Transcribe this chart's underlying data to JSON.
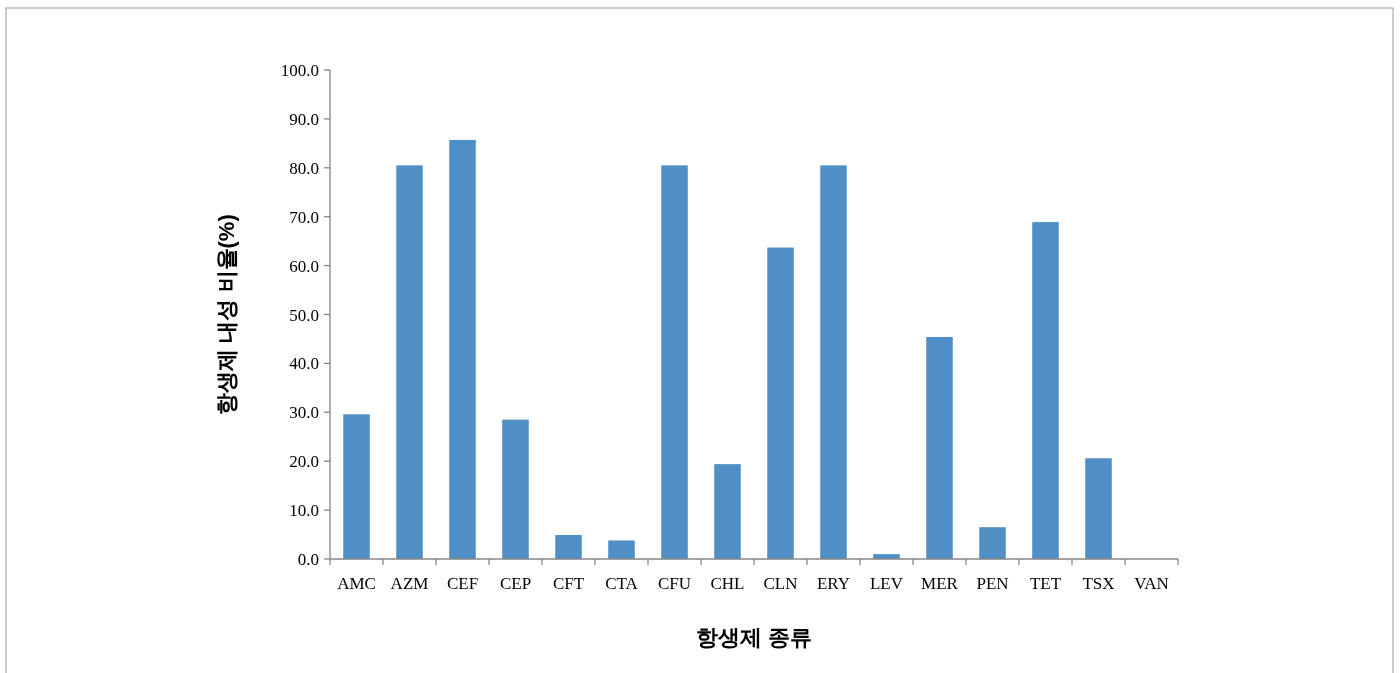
{
  "chart_data": {
    "type": "bar",
    "xlabel": "항생제 종류",
    "ylabel": "항생제 내성 비율(%)",
    "categories": [
      "AMC",
      "AZM",
      "CEF",
      "CEP",
      "CFT",
      "CTA",
      "CFU",
      "CHL",
      "CLN",
      "ERY",
      "LEV",
      "MER",
      "PEN",
      "TET",
      "TSX",
      "VAN"
    ],
    "values": [
      29.6,
      80.5,
      85.7,
      28.5,
      4.9,
      3.8,
      80.5,
      19.4,
      63.7,
      80.5,
      1.0,
      45.4,
      6.5,
      68.9,
      20.6,
      0
    ],
    "color": "#4f8fc6",
    "ylim": [
      0,
      100
    ],
    "yticks": [
      {
        "value": 0,
        "label": "0.0"
      },
      {
        "value": 10,
        "label": "10.0"
      },
      {
        "value": 20,
        "label": "20.0"
      },
      {
        "value": 30,
        "label": "30.0"
      },
      {
        "value": 40,
        "label": "40.0"
      },
      {
        "value": 50,
        "label": "50.0"
      },
      {
        "value": 60,
        "label": "60.0"
      },
      {
        "value": 70,
        "label": "70.0"
      },
      {
        "value": 80,
        "label": "80.0"
      },
      {
        "value": 90,
        "label": "90.0"
      },
      {
        "value": 100,
        "label": "100.0"
      }
    ],
    "grid": false
  }
}
